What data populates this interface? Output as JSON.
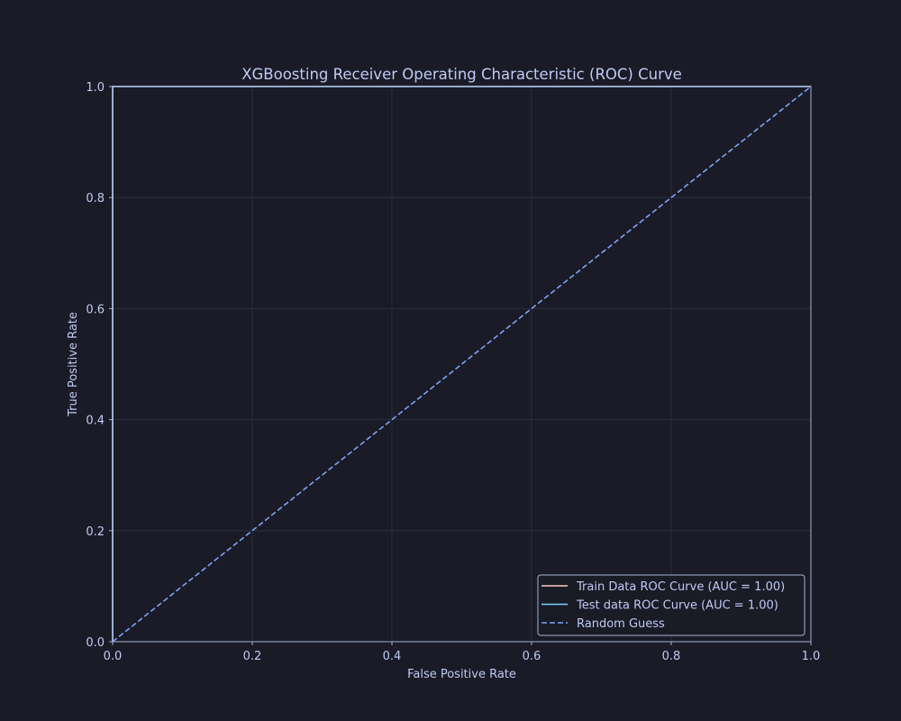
{
  "chart_data": {
    "type": "line",
    "title": "XGBoosting Receiver Operating Characteristic (ROC) Curve",
    "xlabel": "False Positive Rate",
    "ylabel": "True Positive Rate",
    "xlim": [
      0.0,
      1.0
    ],
    "ylim": [
      0.0,
      1.0
    ],
    "xticks": [
      "0.0",
      "0.2",
      "0.4",
      "0.6",
      "0.8",
      "1.0"
    ],
    "yticks": [
      "0.0",
      "0.2",
      "0.4",
      "0.6",
      "0.8",
      "1.0"
    ],
    "grid": true,
    "legend_position": "lower right",
    "series": [
      {
        "name": "Train Data ROC Curve (AUC = 1.00)",
        "color": "#ffc9c9",
        "style": "solid",
        "x": [
          0.0,
          0.0,
          1.0
        ],
        "y": [
          0.0,
          1.0,
          1.0
        ]
      },
      {
        "name": "Test data ROC Curve (AUC = 1.00)",
        "color": "#7dcfff",
        "style": "solid",
        "x": [
          0.0,
          0.0,
          1.0
        ],
        "y": [
          0.0,
          1.0,
          1.0
        ]
      },
      {
        "name": "Random Guess",
        "color": "#7aa2f7",
        "style": "dashed",
        "x": [
          0.0,
          1.0
        ],
        "y": [
          0.0,
          1.0
        ]
      }
    ]
  },
  "colors": {
    "background": "#1a1b26",
    "axes_edge": "#a9b1d6",
    "grid": "#2f3348",
    "text": "#c0caf5",
    "legend_bg": "#1a1b26",
    "legend_edge": "#a9b1d6"
  }
}
